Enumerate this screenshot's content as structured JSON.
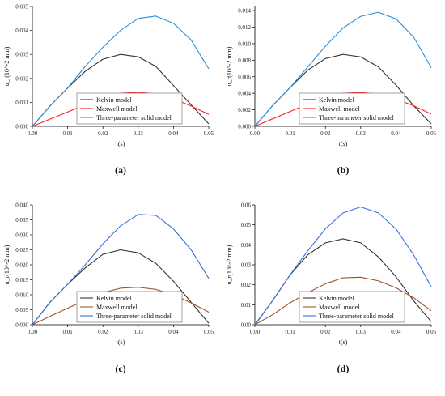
{
  "figure": {
    "legend_entries": [
      "Kelvin model",
      "Maxwell model",
      "Three-parameter solid model"
    ]
  },
  "chart_data": [
    {
      "type": "line",
      "panel_label": "(a)",
      "xlabel": "t(s)",
      "ylabel": "u_r(10^-2 mm)",
      "xlim": [
        0,
        0.05
      ],
      "ylim": [
        0,
        0.005
      ],
      "xticks": [
        "0.00",
        "0.01",
        "0.02",
        "0.03",
        "0.04",
        "0.05"
      ],
      "yticks": [
        "0.000",
        "0.001",
        "0.002",
        "0.003",
        "0.004",
        "0.005"
      ],
      "legend_position": "bottom-center",
      "series": [
        {
          "name": "Kelvin model",
          "color": "#333333",
          "x": [
            0,
            0.005,
            0.01,
            0.015,
            0.02,
            0.025,
            0.03,
            0.035,
            0.04,
            0.045,
            0.05
          ],
          "y": [
            0,
            0.00085,
            0.0016,
            0.0023,
            0.0028,
            0.003,
            0.0029,
            0.0025,
            0.0017,
            0.0009,
            0.0001
          ]
        },
        {
          "name": "Maxwell model",
          "color": "#ff2020",
          "x": [
            0,
            0.005,
            0.01,
            0.015,
            0.02,
            0.025,
            0.03,
            0.035,
            0.04,
            0.045,
            0.05
          ],
          "y": [
            0,
            0.0003,
            0.0006,
            0.0009,
            0.00122,
            0.00138,
            0.00142,
            0.00135,
            0.00115,
            0.00085,
            0.0005
          ]
        },
        {
          "name": "Three-parameter solid model",
          "color": "#2a8fd6",
          "x": [
            0,
            0.005,
            0.01,
            0.015,
            0.02,
            0.025,
            0.03,
            0.035,
            0.04,
            0.045,
            0.05
          ],
          "y": [
            0,
            0.00085,
            0.0016,
            0.0025,
            0.0033,
            0.004,
            0.0045,
            0.0046,
            0.0043,
            0.0036,
            0.0024
          ]
        }
      ]
    },
    {
      "type": "line",
      "panel_label": "(b)",
      "xlabel": "t(s)",
      "ylabel": "u_r(10^-2 mm)",
      "xlim": [
        0,
        0.05
      ],
      "ylim": [
        0,
        0.0145
      ],
      "xticks": [
        "0.00",
        "0.01",
        "0.02",
        "0.03",
        "0.04",
        "0.05"
      ],
      "yticks": [
        "0.000",
        "0.002",
        "0.004",
        "0.006",
        "0.008",
        "0.010",
        "0.012",
        "0.014"
      ],
      "legend_position": "bottom-center",
      "series": [
        {
          "name": "Kelvin model",
          "color": "#333333",
          "x": [
            0,
            0.005,
            0.01,
            0.015,
            0.02,
            0.025,
            0.03,
            0.035,
            0.04,
            0.045,
            0.05
          ],
          "y": [
            0,
            0.0025,
            0.0047,
            0.0068,
            0.0082,
            0.0087,
            0.0084,
            0.0072,
            0.005,
            0.0025,
            0.0003
          ]
        },
        {
          "name": "Maxwell model",
          "color": "#ff2020",
          "x": [
            0,
            0.005,
            0.01,
            0.015,
            0.02,
            0.025,
            0.03,
            0.035,
            0.04,
            0.045,
            0.05
          ],
          "y": [
            0,
            0.0009,
            0.0018,
            0.0027,
            0.0035,
            0.004,
            0.0041,
            0.0039,
            0.0033,
            0.0025,
            0.0015
          ]
        },
        {
          "name": "Three-parameter solid model",
          "color": "#2a8fd6",
          "x": [
            0,
            0.005,
            0.01,
            0.015,
            0.02,
            0.025,
            0.03,
            0.035,
            0.04,
            0.045,
            0.05
          ],
          "y": [
            0,
            0.0025,
            0.0047,
            0.0072,
            0.0097,
            0.0119,
            0.0133,
            0.0138,
            0.013,
            0.0108,
            0.0071
          ]
        }
      ]
    },
    {
      "type": "line",
      "panel_label": "(c)",
      "xlabel": "t(s)",
      "ylabel": "u_r(10^-2 mm)",
      "xlim": [
        0,
        0.05
      ],
      "ylim": [
        0,
        0.04
      ],
      "xticks": [
        "0.00",
        "0.01",
        "0.02",
        "0.03",
        "0.04",
        "0.05"
      ],
      "yticks": [
        "0.000",
        "0.005",
        "0.010",
        "0.015",
        "0.020",
        "0.025",
        "0.030",
        "0.035",
        "0.040"
      ],
      "legend_position": "bottom-center",
      "series": [
        {
          "name": "Kelvin model",
          "color": "#333333",
          "x": [
            0,
            0.005,
            0.01,
            0.015,
            0.02,
            0.025,
            0.03,
            0.035,
            0.04,
            0.045,
            0.05
          ],
          "y": [
            0,
            0.0075,
            0.0135,
            0.019,
            0.0235,
            0.025,
            0.024,
            0.0205,
            0.0145,
            0.0075,
            0.0005
          ]
        },
        {
          "name": "Maxwell model",
          "color": "#a0522d",
          "x": [
            0,
            0.005,
            0.01,
            0.015,
            0.02,
            0.025,
            0.03,
            0.035,
            0.04,
            0.045,
            0.05
          ],
          "y": [
            0,
            0.0028,
            0.0055,
            0.0082,
            0.0107,
            0.0122,
            0.0125,
            0.0118,
            0.01,
            0.0073,
            0.0042
          ]
        },
        {
          "name": "Three-parameter solid model",
          "color": "#3a6fd8",
          "x": [
            0,
            0.005,
            0.01,
            0.015,
            0.02,
            0.025,
            0.03,
            0.035,
            0.04,
            0.045,
            0.05
          ],
          "y": [
            0,
            0.0075,
            0.0135,
            0.02,
            0.027,
            0.033,
            0.0368,
            0.0365,
            0.032,
            0.025,
            0.0155
          ]
        }
      ]
    },
    {
      "type": "line",
      "panel_label": "(d)",
      "xlabel": "t(s)",
      "ylabel": "u_r(10^-2 mm)",
      "xlim": [
        0,
        0.05
      ],
      "ylim": [
        0,
        0.06
      ],
      "xticks": [
        "0.00",
        "0.01",
        "0.02",
        "0.03",
        "0.04",
        "0.05"
      ],
      "yticks": [
        "0.00",
        "0.01",
        "0.02",
        "0.03",
        "0.04",
        "0.05",
        "0.06"
      ],
      "legend_position": "bottom-center",
      "series": [
        {
          "name": "Kelvin model",
          "color": "#333333",
          "x": [
            0,
            0.005,
            0.01,
            0.015,
            0.02,
            0.025,
            0.03,
            0.035,
            0.04,
            0.045,
            0.05
          ],
          "y": [
            0,
            0.012,
            0.025,
            0.035,
            0.041,
            0.043,
            0.041,
            0.034,
            0.024,
            0.012,
            0.0015
          ]
        },
        {
          "name": "Maxwell model",
          "color": "#a0522d",
          "x": [
            0,
            0.005,
            0.01,
            0.015,
            0.02,
            0.025,
            0.03,
            0.035,
            0.04,
            0.045,
            0.05
          ],
          "y": [
            0,
            0.005,
            0.011,
            0.016,
            0.0205,
            0.0235,
            0.0238,
            0.022,
            0.0185,
            0.0135,
            0.007
          ]
        },
        {
          "name": "Three-parameter solid model",
          "color": "#3a6fd8",
          "x": [
            0,
            0.005,
            0.01,
            0.015,
            0.02,
            0.025,
            0.03,
            0.035,
            0.04,
            0.045,
            0.05
          ],
          "y": [
            0,
            0.012,
            0.025,
            0.037,
            0.048,
            0.056,
            0.059,
            0.056,
            0.048,
            0.035,
            0.019
          ]
        }
      ]
    }
  ]
}
